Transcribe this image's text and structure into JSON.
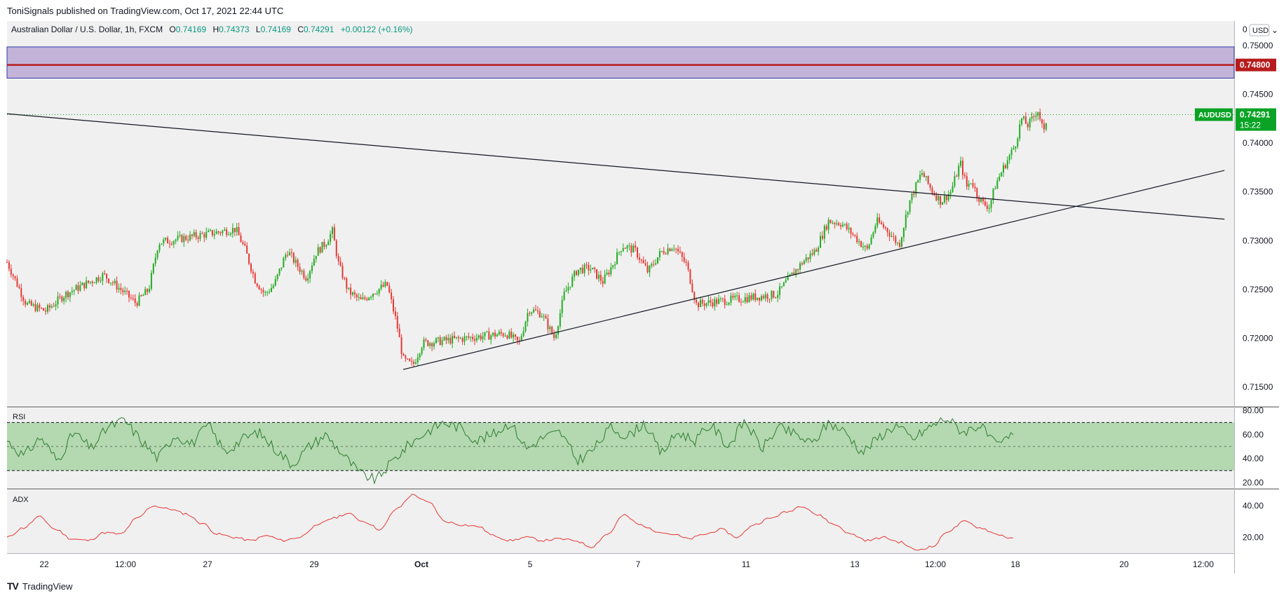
{
  "header": {
    "publisher": "ToniSignals published on TradingView.com, Oct 17, 2021 22:44 UTC"
  },
  "legend": {
    "symbol": "Australian Dollar / U.S. Dollar, 1h, FXCM",
    "open_label": "O",
    "open": "0.74169",
    "high_label": "H",
    "high": "0.74373",
    "low_label": "L",
    "low": "0.74169",
    "close_label": "C",
    "close": "0.74291",
    "change": "+0.00122 (+0.16%)"
  },
  "price_axis": {
    "top_label": "0",
    "currency": "USD",
    "ticks": [
      "0.75000",
      "0.74500",
      "0.74000",
      "0.73500",
      "0.73000",
      "0.72500",
      "0.72000",
      "0.71500"
    ],
    "resistance_label": "0.74800",
    "symbol_tag": "AUDUSD",
    "last_price": "0.74291",
    "countdown": "15:22"
  },
  "time_axis": {
    "ticks": [
      "22",
      "12:00",
      "27",
      "29",
      "Oct",
      "5",
      "7",
      "11",
      "13",
      "12:00",
      "18",
      "20",
      "12:00"
    ]
  },
  "indicators": {
    "rsi_label": "RSI",
    "rsi_ticks": [
      "80.00",
      "60.00",
      "40.00",
      "20.00"
    ],
    "adx_label": "ADX",
    "adx_ticks": [
      "40.00",
      "20.00"
    ]
  },
  "colors": {
    "up": "#26a69a",
    "down": "#ef5350",
    "candle_up": "#22ab22",
    "candle_down": "#e53935",
    "zone_fill": "#c3b3d9",
    "zone_border": "#2e3fa8",
    "resistance": "#b71c1c",
    "rsi_band": "#a9d4a5",
    "rsi_line": "#2e7d32",
    "adx_line": "#e53935",
    "last_price_tag": "#0aa325"
  },
  "chart_data": [
    {
      "type": "candlestick",
      "title": "Australian Dollar / U.S. Dollar, 1h, FXCM",
      "ylabel": "USD",
      "ylim": [
        0.713,
        0.7525
      ],
      "close_path": [
        [
          "2021-09-21 00:00",
          0.7278
        ],
        [
          "2021-09-21 12:00",
          0.7235
        ],
        [
          "2021-09-22 00:00",
          0.7228
        ],
        [
          "2021-09-22 12:00",
          0.7245
        ],
        [
          "2021-09-23 00:00",
          0.7255
        ],
        [
          "2021-09-23 12:00",
          0.7265
        ],
        [
          "2021-09-24 00:00",
          0.7248
        ],
        [
          "2021-09-24 08:00",
          0.7236
        ],
        [
          "2021-09-24 16:00",
          0.725
        ],
        [
          "2021-09-24 22:00",
          0.7298
        ],
        [
          "2021-09-26 22:00",
          0.7312
        ],
        [
          "2021-09-27 04:00",
          0.729
        ],
        [
          "2021-09-27 10:00",
          0.726
        ],
        [
          "2021-09-27 16:00",
          0.7245
        ],
        [
          "2021-09-27 22:00",
          0.7255
        ],
        [
          "2021-09-28 06:00",
          0.729
        ],
        [
          "2021-09-28 12:00",
          0.7275
        ],
        [
          "2021-09-28 18:00",
          0.7262
        ],
        [
          "2021-09-29 00:00",
          0.7288
        ],
        [
          "2021-09-29 06:00",
          0.7298
        ],
        [
          "2021-09-29 10:00",
          0.731
        ],
        [
          "2021-09-29 14:00",
          0.7275
        ],
        [
          "2021-09-29 20:00",
          0.7248
        ],
        [
          "2021-09-30 04:00",
          0.7238
        ],
        [
          "2021-09-30 12:00",
          0.7248
        ],
        [
          "2021-09-30 20:00",
          0.7255
        ],
        [
          "2021-10-01 02:00",
          0.7215
        ],
        [
          "2021-10-01 06:00",
          0.7178
        ],
        [
          "2021-10-01 12:00",
          0.7172
        ],
        [
          "2021-10-01 18:00",
          0.7195
        ],
        [
          "2021-10-03 22:00",
          0.7205
        ],
        [
          "2021-10-04 06:00",
          0.7195
        ],
        [
          "2021-10-04 12:00",
          0.723
        ],
        [
          "2021-10-04 20:00",
          0.7225
        ],
        [
          "2021-10-05 04:00",
          0.72
        ],
        [
          "2021-10-05 10:00",
          0.7245
        ],
        [
          "2021-10-05 18:00",
          0.727
        ],
        [
          "2021-10-06 02:00",
          0.7272
        ],
        [
          "2021-10-06 10:00",
          0.7258
        ],
        [
          "2021-10-06 16:00",
          0.7275
        ],
        [
          "2021-10-06 22:00",
          0.7295
        ],
        [
          "2021-10-07 06:00",
          0.729
        ],
        [
          "2021-10-07 14:00",
          0.7268
        ],
        [
          "2021-10-07 22:00",
          0.7288
        ],
        [
          "2021-10-08 06:00",
          0.7295
        ],
        [
          "2021-10-08 14:00",
          0.7275
        ],
        [
          "2021-10-08 20:00",
          0.7235
        ],
        [
          "2021-10-10 22:00",
          0.7245
        ],
        [
          "2021-10-11 06:00",
          0.7262
        ],
        [
          "2021-10-11 14:00",
          0.7278
        ],
        [
          "2021-10-11 22:00",
          0.729
        ],
        [
          "2021-10-12 06:00",
          0.732
        ],
        [
          "2021-10-12 14:00",
          0.7318
        ],
        [
          "2021-10-12 22:00",
          0.7305
        ],
        [
          "2021-10-13 06:00",
          0.729
        ],
        [
          "2021-10-13 12:00",
          0.732
        ],
        [
          "2021-10-13 18:00",
          0.7312
        ],
        [
          "2021-10-14 02:00",
          0.7295
        ],
        [
          "2021-10-14 08:00",
          0.7338
        ],
        [
          "2021-10-14 16:00",
          0.737
        ],
        [
          "2021-10-14 22:00",
          0.7352
        ],
        [
          "2021-10-15 04:00",
          0.734
        ],
        [
          "2021-10-15 10:00",
          0.735
        ],
        [
          "2021-10-15 16:00",
          0.738
        ],
        [
          "2021-10-15 20:00",
          0.7355
        ],
        [
          "2021-10-15 23:00",
          0.7362
        ],
        [
          "2021-10-16 02:00",
          0.7348
        ],
        [
          "2021-10-16 06:00",
          0.7338
        ],
        [
          "2021-10-16 10:00",
          0.7335
        ],
        [
          "2021-10-16 14:00",
          0.7358
        ],
        [
          "2021-10-16 18:00",
          0.7372
        ],
        [
          "2021-10-16 22:00",
          0.7385
        ],
        [
          "2021-10-17 02:00",
          0.7398
        ],
        [
          "2021-10-17 06:00",
          0.7425
        ],
        [
          "2021-10-17 10:00",
          0.7418
        ],
        [
          "2021-10-17 14:00",
          0.7428
        ],
        [
          "2021-10-17 16:00",
          0.7435
        ],
        [
          "2021-10-17 18:00",
          0.7422
        ],
        [
          "2021-10-17 20:00",
          0.741
        ],
        [
          "2021-10-17 21:00",
          0.742
        ],
        [
          "2021-10-17 22:00",
          0.74291
        ]
      ],
      "last_bar": {
        "open": 0.74169,
        "high": 0.74373,
        "low": 0.74169,
        "close": 0.74291
      },
      "annotations": {
        "resistance_zone": {
          "from": 0.74665,
          "to": 0.74985
        },
        "resistance_line": 0.748,
        "last_price_line": 0.74291,
        "descending_trendline": [
          [
            "2021-09-21 00:00",
            0.743
          ],
          [
            "2021-10-22 12:00",
            0.7322
          ]
        ],
        "ascending_trendline": [
          [
            "2021-10-01 06:00",
            0.7168
          ],
          [
            "2021-10-22 12:00",
            0.7372
          ]
        ]
      }
    },
    {
      "type": "line",
      "title": "RSI",
      "ylim": [
        15,
        82
      ],
      "band": [
        30,
        70
      ],
      "midline": 50,
      "series": [
        {
          "values": [
            55,
            42,
            58,
            38,
            62,
            48,
            66,
            72,
            55,
            40,
            60,
            52,
            68,
            45,
            56,
            62,
            48,
            35,
            50,
            60,
            44,
            28,
            22,
            38,
            52,
            62,
            70,
            66,
            55,
            60,
            70,
            48,
            58,
            62,
            38,
            48,
            66,
            58,
            70,
            44,
            62,
            55,
            68,
            50,
            72,
            48,
            66,
            60,
            52,
            70,
            62,
            45,
            58,
            68,
            56,
            66,
            74,
            62,
            68,
            50,
            60
          ]
        }
      ]
    },
    {
      "type": "line",
      "title": "ADX",
      "ylim": [
        10,
        50
      ],
      "series": [
        {
          "values": [
            20,
            26,
            33,
            25,
            19,
            18,
            23,
            22,
            32,
            40,
            38,
            35,
            29,
            22,
            20,
            18,
            21,
            18,
            20,
            27,
            32,
            35,
            30,
            25,
            38,
            47,
            42,
            30,
            28,
            27,
            21,
            18,
            20,
            18,
            19,
            18,
            14,
            22,
            34,
            28,
            24,
            22,
            19,
            22,
            25,
            20,
            28,
            32,
            36,
            40,
            34,
            28,
            22,
            18,
            20,
            17,
            12,
            14,
            24,
            30,
            26,
            22,
            19
          ]
        }
      ]
    }
  ]
}
